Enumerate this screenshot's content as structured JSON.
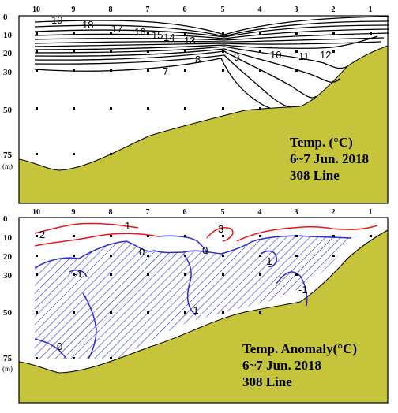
{
  "colors": {
    "topography": "#c5c43a",
    "frame": "#000000",
    "isotherm": "#000000",
    "positive_anomaly": "#e8141c",
    "negative_anomaly": "#2b2bd8",
    "hatch": "#2b2bd8"
  },
  "chart_data": [
    {
      "type": "contour",
      "text_lines": [
        "Temp. (°C)",
        "6~7 Jun. 2018",
        "308 Line"
      ],
      "stations": [
        "10",
        "9",
        "8",
        "7",
        "6",
        "5",
        "4",
        "3",
        "2",
        "1"
      ],
      "y_ticks": [
        "0",
        "10",
        "20",
        "30",
        "50",
        "75"
      ],
      "y_unit": "(m)",
      "depth_range": [
        0,
        75
      ],
      "sampling_depths": [
        10,
        20,
        30,
        50,
        75
      ],
      "contour_levels": [
        19,
        18,
        17,
        16,
        15,
        14,
        13,
        12,
        11,
        10,
        9,
        8,
        7
      ],
      "contour_labels": [
        {
          "text": "19",
          "station": "9.6",
          "depth": 3
        },
        {
          "text": "18",
          "station": "8.7",
          "depth": 6
        },
        {
          "text": "17",
          "station": "7.8",
          "depth": 9
        },
        {
          "text": "16",
          "station": "6.9",
          "depth": 10
        },
        {
          "text": "15",
          "station": "6.6",
          "depth": 11
        },
        {
          "text": "14",
          "station": "6.3",
          "depth": 12
        },
        {
          "text": "13",
          "station": "5.7",
          "depth": 13
        },
        {
          "text": "12",
          "station": "2.2",
          "depth": 22
        },
        {
          "text": "11",
          "station": "2.7",
          "depth": 23
        },
        {
          "text": "10",
          "station": "3.6",
          "depth": 22
        },
        {
          "text": "9",
          "station": "4.6",
          "depth": 23
        },
        {
          "text": "8",
          "station": "5.4",
          "depth": 25
        },
        {
          "text": "7",
          "station": "6.6",
          "depth": 32
        }
      ]
    },
    {
      "type": "contour",
      "text_lines": [
        "Temp. Anomaly(°C)",
        "6~7 Jun. 2018",
        "308 Line"
      ],
      "stations": [
        "10",
        "9",
        "8",
        "7",
        "6",
        "5",
        "4",
        "3",
        "2",
        "1"
      ],
      "y_ticks": [
        "0",
        "10",
        "20",
        "30",
        "50",
        "75"
      ],
      "y_unit": "(m)",
      "depth_range": [
        0,
        75
      ],
      "sampling_depths": [
        10,
        20,
        30,
        50,
        75
      ],
      "contour_levels": [
        3,
        2,
        1,
        0,
        -1
      ],
      "negative_region_hatched": true,
      "contour_labels": [
        {
          "text": "2",
          "station": "9.8",
          "depth": 6
        },
        {
          "text": "1",
          "station": "8.5",
          "depth": 3
        },
        {
          "text": "3",
          "station": "4.9",
          "depth": 5
        },
        {
          "text": "0",
          "station": "7.1",
          "depth": 18
        },
        {
          "text": "0",
          "station": "5.6",
          "depth": 18
        },
        {
          "text": "-1",
          "station": "9.0",
          "depth": 30
        },
        {
          "text": "-1",
          "station": "5.8",
          "depth": 46
        },
        {
          "text": "-1",
          "station": "3.6",
          "depth": 21
        },
        {
          "text": "-1",
          "station": "3.8",
          "depth": 40
        },
        {
          "text": "0",
          "station": "9.3",
          "depth": 71
        }
      ]
    }
  ]
}
